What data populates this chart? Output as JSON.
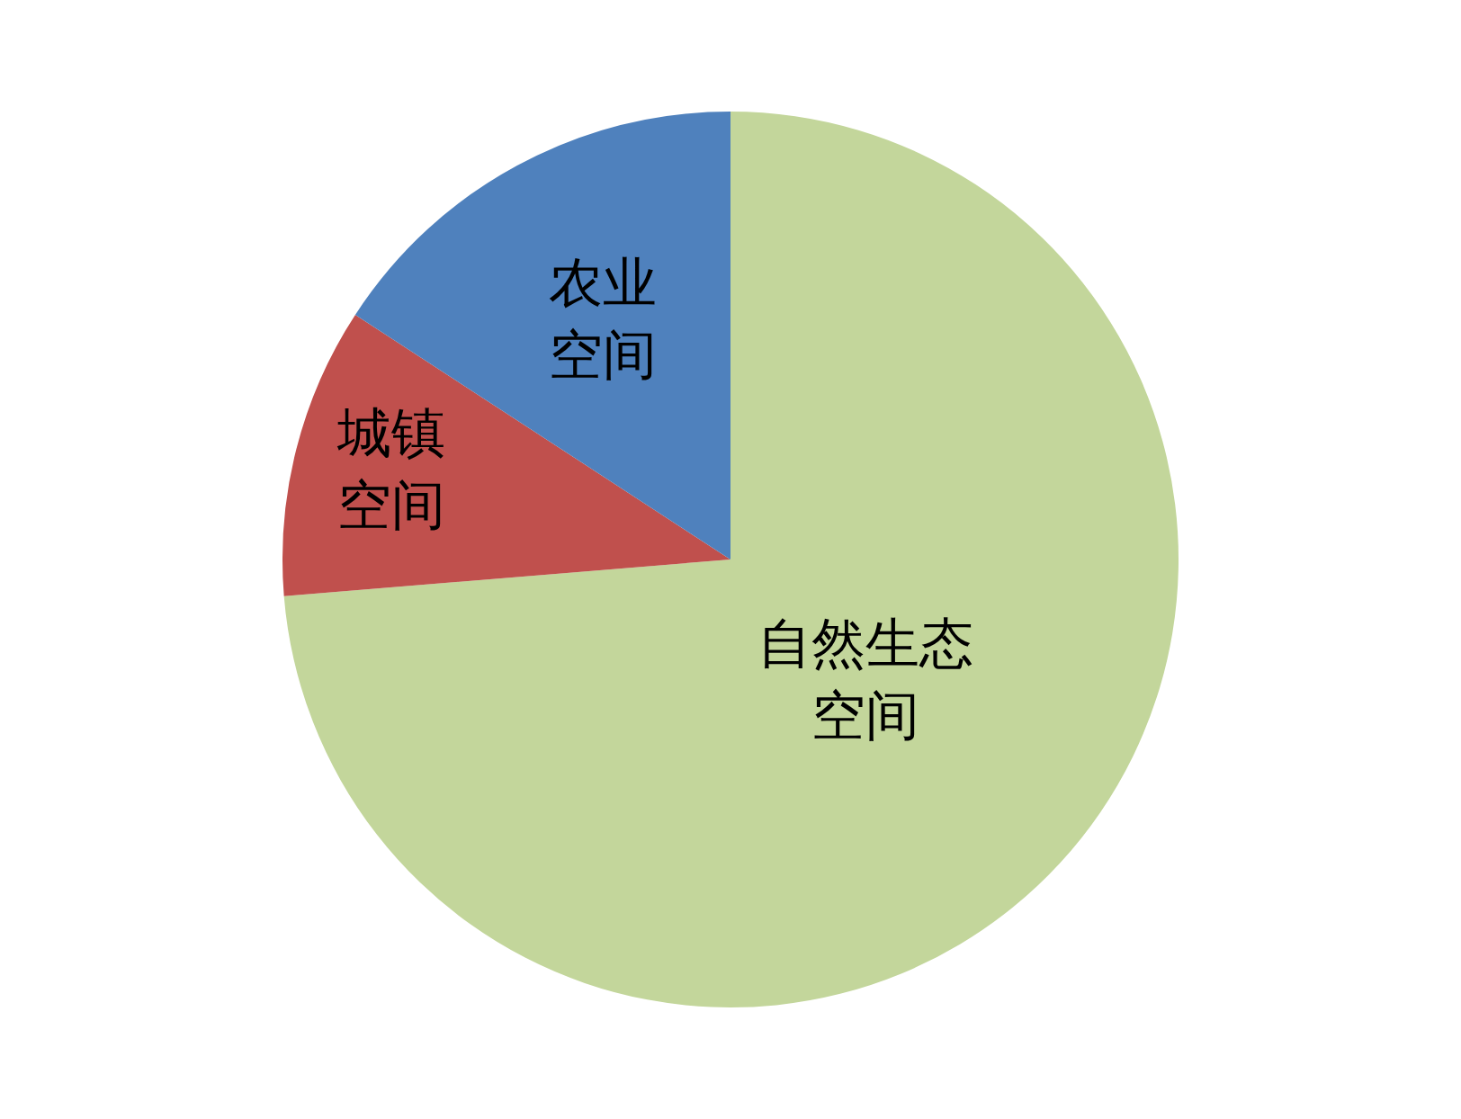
{
  "chart_data": {
    "type": "pie",
    "categories": [
      "自然生态空间",
      "城镇空间",
      "农业空间"
    ],
    "values": [
      73.7,
      10.5,
      15.8
    ],
    "colors": [
      "#c3d69b",
      "#c0504d",
      "#4f81bd"
    ]
  }
}
